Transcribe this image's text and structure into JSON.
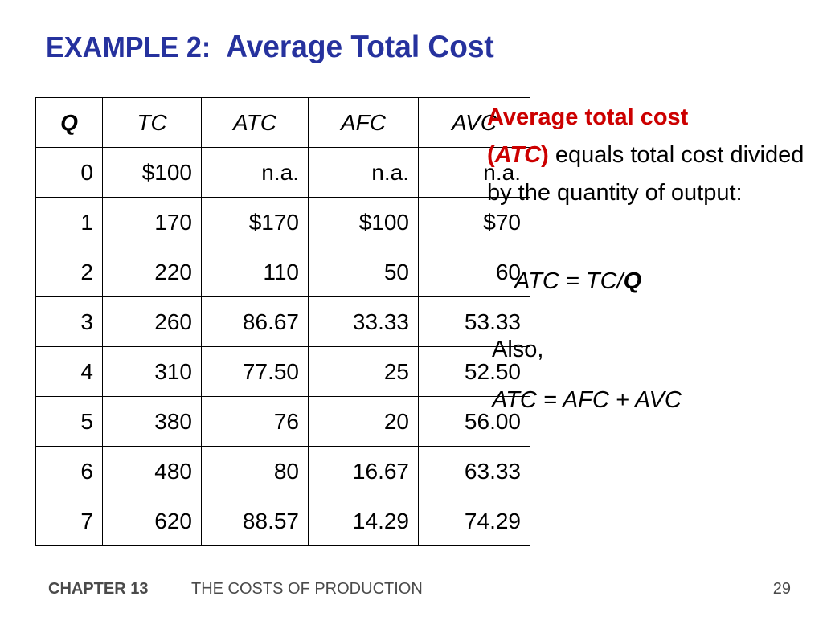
{
  "slide": {
    "title_prefix": "EXAMPLE 2:",
    "title_main": "Average Total Cost"
  },
  "table": {
    "headers": [
      "Q",
      "TC",
      "ATC",
      "AFC",
      "AVC"
    ],
    "rows": [
      [
        "0",
        "$100",
        "n.a.",
        "n.a.",
        "n.a."
      ],
      [
        "1",
        "170",
        "$170",
        "$100",
        "$70"
      ],
      [
        "2",
        "220",
        "110",
        "50",
        "60"
      ],
      [
        "3",
        "260",
        "86.67",
        "33.33",
        "53.33"
      ],
      [
        "4",
        "310",
        "77.50",
        "25",
        "52.50"
      ],
      [
        "5",
        "380",
        "76",
        "20",
        "56.00"
      ],
      [
        "6",
        "480",
        "80",
        "16.67",
        "63.33"
      ],
      [
        "7",
        "620",
        "88.57",
        "14.29",
        "74.29"
      ]
    ]
  },
  "definition": {
    "term": "Average total cost",
    "open_paren": "(",
    "abbr": "ATC",
    "close_paren": ")",
    "rest": " equals total cost divided by the quantity of output:"
  },
  "formula1": {
    "lhs": "ATC = TC/",
    "q": "Q"
  },
  "also": "Also,",
  "formula2": "ATC = AFC + AVC",
  "footer": {
    "chapter": "CHAPTER 13",
    "chapter_title": "THE COSTS OF PRODUCTION",
    "page": "29"
  },
  "colors": {
    "title": "#26329e",
    "highlight": "#cc0000",
    "footer": "#4a4a4a"
  }
}
